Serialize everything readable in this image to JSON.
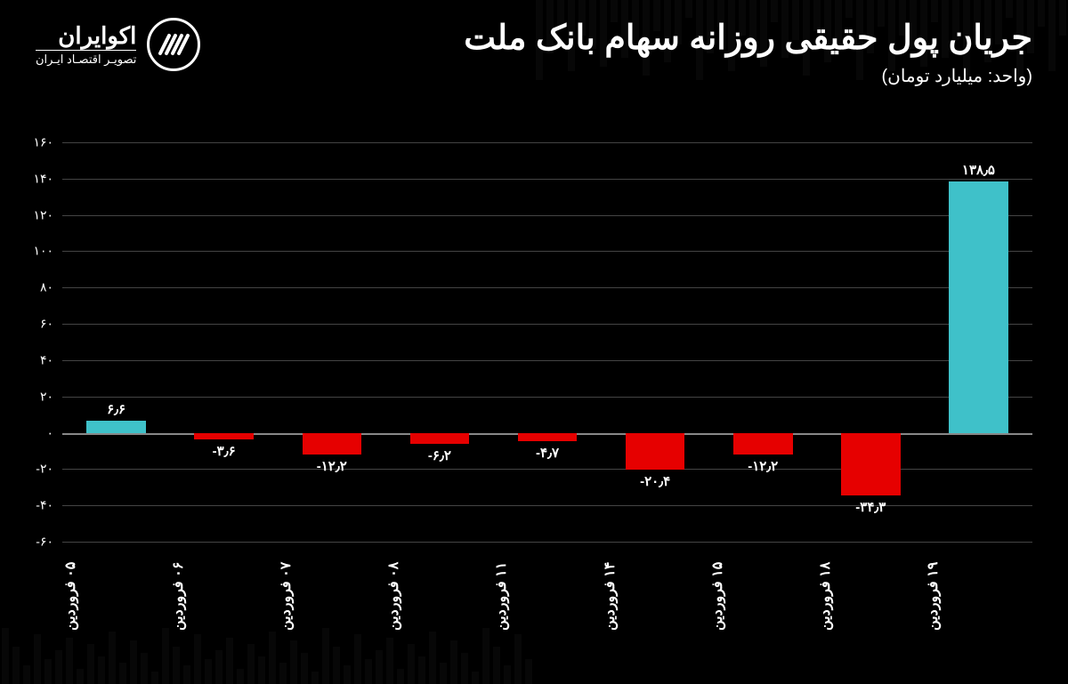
{
  "header": {
    "title": "جریان پول حقیقی روزانه سهام بانک ملت",
    "subtitle": "(واحد: میلیارد تومان)",
    "brand": "اکوایران",
    "tagline": "تصویـر اقتصـاد ایـران"
  },
  "chart": {
    "type": "bar",
    "ylim": [
      -60,
      160
    ],
    "ytick_step": 20,
    "yticks": [
      "۱۶۰",
      "۱۴۰",
      "۱۲۰",
      "۱۰۰",
      "۸۰",
      "۶۰",
      "۴۰",
      "۲۰",
      "۰",
      "-۲۰",
      "-۴۰",
      "-۶۰"
    ],
    "ytick_values": [
      160,
      140,
      120,
      100,
      80,
      60,
      40,
      20,
      0,
      -20,
      -40,
      -60
    ],
    "background_color": "#000000",
    "grid_color": "#444444",
    "zero_line_color": "#888888",
    "positive_color": "#3fc1c9",
    "negative_color": "#e60000",
    "text_color": "#ffffff",
    "title_fontsize": 38,
    "subtitle_fontsize": 20,
    "tick_fontsize": 14,
    "label_fontsize": 15,
    "xlabel_fontsize": 16,
    "bar_width_ratio": 0.55,
    "data": [
      {
        "category": "۰۵ فروردین",
        "value": 6.6,
        "label": "۶٫۶"
      },
      {
        "category": "۰۶ فروردین",
        "value": -3.6,
        "label": "-۳٫۶"
      },
      {
        "category": "۰۷ فروردین",
        "value": -12.2,
        "label": "-۱۲٫۲"
      },
      {
        "category": "۰۸ فروردین",
        "value": -6.2,
        "label": "-۶٫۲"
      },
      {
        "category": "۱۱ فروردین",
        "value": -4.7,
        "label": "-۴٫۷"
      },
      {
        "category": "۱۴ فروردین",
        "value": -20.4,
        "label": "-۲۰٫۴"
      },
      {
        "category": "۱۵ فروردین",
        "value": -12.2,
        "label": "-۱۲٫۲"
      },
      {
        "category": "۱۸ فروردین",
        "value": -34.3,
        "label": "-۳۴٫۳"
      },
      {
        "category": "۱۹ فروردین",
        "value": 138.5,
        "label": "۱۳۸٫۵"
      }
    ]
  }
}
